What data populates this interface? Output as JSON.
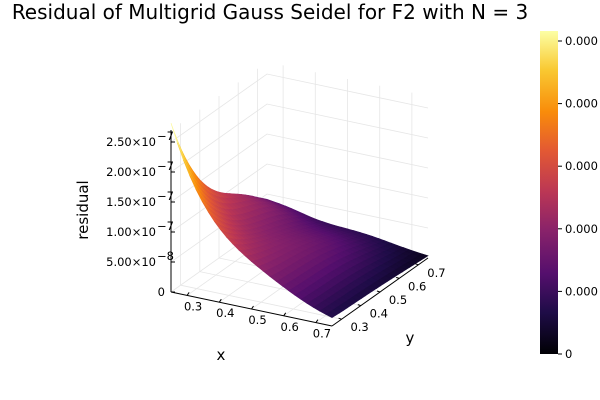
{
  "chart_data": {
    "type": "surface",
    "title": "Residual of Multigrid Gauss Seidel for F2 with N = 3",
    "xlabel": "x",
    "ylabel": "y",
    "zlabel": "residual",
    "xlim": [
      0.25,
      0.75
    ],
    "ylim": [
      0.25,
      0.75
    ],
    "zlim": [
      0,
      2.7e-07
    ],
    "x_ticks": [
      "0.3",
      "0.4",
      "0.5",
      "0.6",
      "0.7"
    ],
    "y_ticks": [
      "0.3",
      "0.4",
      "0.5",
      "0.6",
      "0.7"
    ],
    "z_ticks": [
      {
        "value": 0,
        "label": "0"
      },
      {
        "value": 5e-08,
        "label": "5.00×10",
        "exp": "−8"
      },
      {
        "value": 1e-07,
        "label": "1.00×10",
        "exp": "−7"
      },
      {
        "value": 1.5e-07,
        "label": "1.50×10",
        "exp": "−7"
      },
      {
        "value": 2e-07,
        "label": "2.00×10",
        "exp": "−7"
      },
      {
        "value": 2.5e-07,
        "label": "2.50×10",
        "exp": "−7"
      }
    ],
    "colorbar": {
      "colormap": "inferno",
      "ticks": [
        "0",
        "0.000",
        "0.000",
        "0.000",
        "0.000",
        "0.000"
      ]
    },
    "x": [
      0.25,
      0.3,
      0.35,
      0.4,
      0.45,
      0.5,
      0.55,
      0.6,
      0.65,
      0.7,
      0.75
    ],
    "y": [
      0.25,
      0.3,
      0.35,
      0.4,
      0.45,
      0.5,
      0.55,
      0.6,
      0.65,
      0.7,
      0.75
    ],
    "z_description_note": "",
    "grid": true,
    "legend": "none"
  }
}
